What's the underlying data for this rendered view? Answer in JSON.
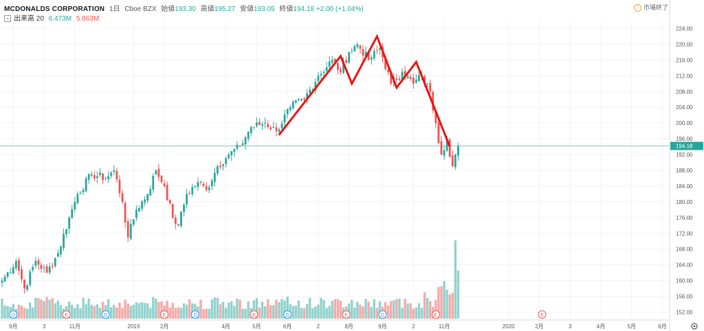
{
  "header": {
    "symbol": "MCDONALDS CORPORATION",
    "interval": "1日",
    "exchange": "Cboe BZX",
    "open_label": "始値",
    "open_value": "193.30",
    "high_label": "高値",
    "high_value": "195.27",
    "low_label": "安値",
    "low_value": "193.05",
    "close_label": "終値",
    "close_value": "194.18",
    "change": "+2.00 (+1.04%)"
  },
  "volume_header": {
    "label": "出来高 20",
    "value1": "6.473M",
    "value2": "5.863M"
  },
  "status": {
    "icon": "info-icon",
    "text": "市場終了"
  },
  "colors": {
    "up": "#26a69a",
    "down": "#ef5350",
    "pattern": "#ee1111",
    "last_price_line": "#26a69a",
    "grid": "#f0f3fa"
  },
  "chart_data": {
    "type": "candlestick",
    "title": "",
    "ylim": [
      150,
      226
    ],
    "y_ticks": [
      "152.00",
      "156.00",
      "160.00",
      "164.00",
      "168.00",
      "172.00",
      "176.00",
      "180.00",
      "184.00",
      "188.00",
      "192.00",
      "196.00",
      "200.00",
      "204.00",
      "208.00",
      "212.00",
      "216.00",
      "220.00",
      "224.00"
    ],
    "x_tick_labels": [
      {
        "label": "9月",
        "bar": 4
      },
      {
        "label": "3",
        "bar": 15
      },
      {
        "label": "11月",
        "bar": 26
      },
      {
        "label": "2019",
        "bar": 47
      },
      {
        "label": "2月",
        "bar": 58
      },
      {
        "label": "4月",
        "bar": 80
      },
      {
        "label": "5月",
        "bar": 91
      },
      {
        "label": "6月",
        "bar": 102
      },
      {
        "label": "2",
        "bar": 113
      },
      {
        "label": "8月",
        "bar": 124
      },
      {
        "label": "9月",
        "bar": 136
      },
      {
        "label": "2",
        "bar": 147
      },
      {
        "label": "11月",
        "bar": 158
      },
      {
        "label": "2020",
        "bar": 181
      },
      {
        "label": "2月",
        "bar": 192
      },
      {
        "label": "3",
        "bar": 203
      },
      {
        "label": "4月",
        "bar": 214
      },
      {
        "label": "5月",
        "bar": 225
      },
      {
        "label": "6月",
        "bar": 236
      }
    ],
    "last_price": "194.18",
    "close_anchors": [
      {
        "bar": 0,
        "close": 160
      },
      {
        "bar": 5,
        "close": 165
      },
      {
        "bar": 8,
        "close": 158
      },
      {
        "bar": 12,
        "close": 165
      },
      {
        "bar": 16,
        "close": 162
      },
      {
        "bar": 20,
        "close": 167
      },
      {
        "bar": 24,
        "close": 176
      },
      {
        "bar": 27,
        "close": 182
      },
      {
        "bar": 32,
        "close": 187
      },
      {
        "bar": 37,
        "close": 186
      },
      {
        "bar": 40,
        "close": 188
      },
      {
        "bar": 43,
        "close": 180
      },
      {
        "bar": 45,
        "close": 171
      },
      {
        "bar": 48,
        "close": 178
      },
      {
        "bar": 52,
        "close": 182
      },
      {
        "bar": 55,
        "close": 188
      },
      {
        "bar": 58,
        "close": 184
      },
      {
        "bar": 61,
        "close": 176
      },
      {
        "bar": 63,
        "close": 174
      },
      {
        "bar": 66,
        "close": 182
      },
      {
        "bar": 70,
        "close": 185
      },
      {
        "bar": 73,
        "close": 183
      },
      {
        "bar": 77,
        "close": 189
      },
      {
        "bar": 81,
        "close": 192
      },
      {
        "bar": 85,
        "close": 194
      },
      {
        "bar": 89,
        "close": 199
      },
      {
        "bar": 94,
        "close": 200
      },
      {
        "bar": 98,
        "close": 198
      },
      {
        "bar": 103,
        "close": 204
      },
      {
        "bar": 108,
        "close": 206
      },
      {
        "bar": 113,
        "close": 212
      },
      {
        "bar": 118,
        "close": 216
      },
      {
        "bar": 121,
        "close": 213
      },
      {
        "bar": 124,
        "close": 218
      },
      {
        "bar": 127,
        "close": 220
      },
      {
        "bar": 131,
        "close": 216
      },
      {
        "bar": 135,
        "close": 219
      },
      {
        "bar": 139,
        "close": 210
      },
      {
        "bar": 143,
        "close": 213
      },
      {
        "bar": 147,
        "close": 210
      },
      {
        "bar": 150,
        "close": 212
      },
      {
        "bar": 153,
        "close": 208
      },
      {
        "bar": 155,
        "close": 200
      },
      {
        "bar": 157,
        "close": 192
      },
      {
        "bar": 159,
        "close": 196
      },
      {
        "bar": 161,
        "close": 189
      },
      {
        "bar": 162,
        "close": 192
      },
      {
        "bar": 163,
        "close": 194.18
      }
    ],
    "pattern_line": [
      {
        "bar": 99,
        "price": 197
      },
      {
        "bar": 121,
        "price": 217
      },
      {
        "bar": 125,
        "price": 210
      },
      {
        "bar": 134,
        "price": 222
      },
      {
        "bar": 141,
        "price": 209
      },
      {
        "bar": 148,
        "price": 215.5
      },
      {
        "bar": 160,
        "price": 194
      }
    ],
    "earnings_markers": [
      {
        "type": "D",
        "bar": 4
      },
      {
        "type": "E",
        "bar": 23
      },
      {
        "type": "D",
        "bar": 37
      },
      {
        "type": "E",
        "bar": 58
      },
      {
        "type": "D",
        "bar": 69
      },
      {
        "type": "E",
        "bar": 90
      },
      {
        "type": "D",
        "bar": 102
      },
      {
        "type": "E",
        "bar": 123
      },
      {
        "type": "D",
        "bar": 136
      },
      {
        "type": "E",
        "bar": 155
      },
      {
        "type": "E",
        "bar": 193
      }
    ]
  },
  "ui": {
    "settings_icon": "gear-icon"
  }
}
